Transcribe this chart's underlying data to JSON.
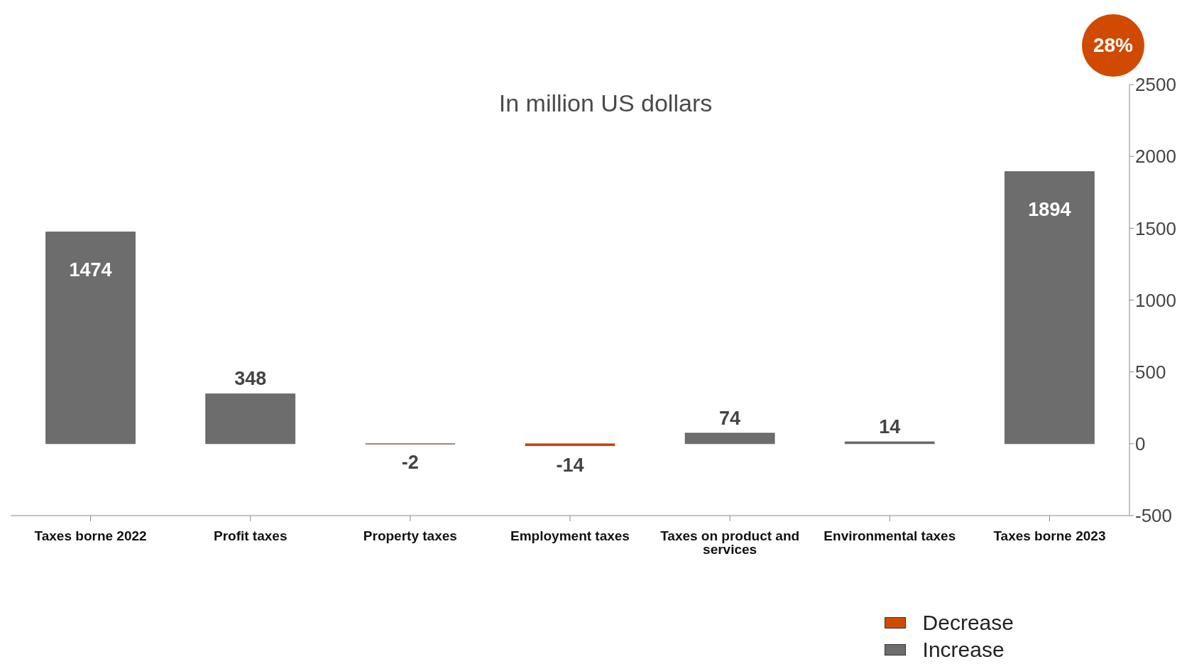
{
  "chart_data": {
    "type": "bar",
    "title": "In million US dollars",
    "annotations": [
      "28%"
    ],
    "categories": [
      "Taxes borne 2022",
      "Profit taxes",
      "Property taxes",
      "Employment taxes",
      "Taxes on product and services",
      "Environmental taxes",
      "Taxes borne 2023"
    ],
    "series": [
      {
        "name": "Decrease",
        "color": "#d04a02",
        "values": [
          null,
          null,
          -2,
          -14,
          null,
          null,
          null
        ]
      },
      {
        "name": "Increase",
        "color": "#6d6d6d",
        "values": [
          1474,
          348,
          null,
          null,
          74,
          14,
          1894
        ]
      }
    ],
    "stacked": true,
    "data_labels": true,
    "ylim": [
      -500,
      2500
    ],
    "yticks": [
      -500,
      0,
      500,
      1000,
      1500,
      2000,
      2500
    ],
    "grid": false,
    "legend": "bottom right"
  }
}
